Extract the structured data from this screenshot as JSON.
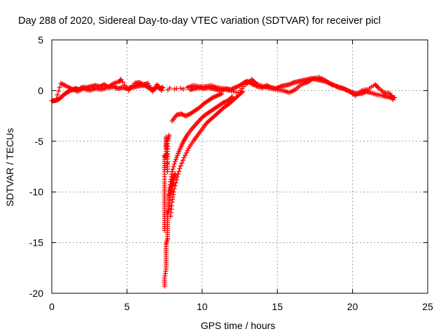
{
  "chart_data": {
    "type": "scatter",
    "title": "Day 288 of 2020, Sidereal Day-to-day VTEC variation (SDTVAR) for receiver picl",
    "xlabel": "GPS time / hours",
    "ylabel": "SDTVAR / TECUs",
    "xlim": [
      0,
      25
    ],
    "ylim": [
      -20,
      5
    ],
    "xticks": [
      0,
      5,
      10,
      15,
      20,
      25
    ],
    "yticks": [
      5,
      0,
      -5,
      -10,
      -15,
      -20
    ],
    "xtick_labels": [
      "0",
      "5",
      "10",
      "15",
      "20",
      "25"
    ],
    "ytick_labels": [
      "5",
      "0",
      "-5",
      "-10",
      "-15",
      "-20"
    ],
    "grid": true,
    "marker": "+",
    "color": "#ff0000",
    "series": [
      {
        "name": "main-track",
        "x": [
          0.0,
          0.2,
          0.4,
          0.6,
          0.8,
          1.0,
          1.2,
          1.4,
          1.6,
          1.8,
          2.0,
          2.3,
          2.6,
          2.9,
          3.2,
          3.5,
          3.8,
          4.1,
          4.4,
          4.7,
          5.0,
          5.3,
          5.6,
          5.9,
          6.2,
          6.5,
          6.8,
          7.0,
          7.2,
          7.4,
          9.2,
          9.5,
          9.8,
          10.1,
          10.4,
          10.7,
          11.0,
          11.3,
          11.6,
          11.9,
          12.2,
          12.5,
          12.8,
          13.0,
          13.2,
          13.4,
          13.7,
          14.0,
          14.3,
          14.6,
          14.9,
          15.2,
          15.5,
          15.8,
          16.1,
          16.4,
          16.7,
          17.0,
          17.3,
          17.6,
          17.9,
          18.2,
          18.5,
          18.8,
          19.1,
          19.4,
          19.7,
          20.0,
          20.3,
          20.6,
          20.9,
          21.2,
          21.6,
          22.0,
          22.3,
          22.6,
          22.8
        ],
        "y": [
          -1.0,
          -1.0,
          -0.9,
          -0.7,
          -0.4,
          -0.2,
          0.0,
          0.1,
          0.2,
          0.1,
          0.3,
          0.3,
          0.4,
          0.5,
          0.4,
          0.6,
          0.3,
          0.4,
          0.2,
          0.3,
          0.2,
          0.3,
          0.4,
          0.5,
          0.5,
          0.2,
          0.1,
          0.4,
          0.2,
          0.3,
          0.1,
          0.2,
          0.3,
          0.2,
          0.3,
          0.2,
          0.1,
          0.0,
          0.2,
          0.1,
          0.3,
          0.5,
          0.8,
          0.9,
          0.8,
          0.6,
          0.4,
          0.3,
          0.5,
          0.3,
          0.2,
          0.4,
          0.5,
          0.6,
          0.8,
          0.9,
          1.0,
          1.1,
          1.2,
          1.1,
          1.0,
          0.9,
          0.7,
          0.5,
          0.3,
          0.2,
          0.0,
          -0.2,
          -0.3,
          -0.3,
          -0.1,
          -0.2,
          -0.4,
          -0.5,
          -0.6,
          -0.7,
          -0.7
        ]
      },
      {
        "name": "main-track-secondary",
        "x": [
          0.3,
          0.6,
          0.9,
          1.3,
          1.7,
          2.1,
          2.5,
          2.9,
          3.3,
          3.7,
          4.1,
          4.5,
          4.6,
          5.1,
          5.5,
          5.8,
          6.1,
          6.4,
          6.7,
          7.0,
          7.3,
          9.0,
          9.4,
          9.8,
          10.2,
          10.6,
          11.0,
          11.4,
          11.8,
          12.4,
          12.9,
          13.3,
          13.6,
          14.1,
          14.5,
          15.0,
          15.4,
          15.8,
          16.2,
          16.6,
          17.0,
          17.4,
          17.8,
          18.2,
          18.6,
          19.0,
          19.4,
          19.8,
          20.2,
          20.6,
          21.0,
          21.5,
          21.7,
          22.1,
          22.5,
          22.7
        ],
        "y": [
          -0.8,
          0.7,
          0.5,
          0.2,
          -0.1,
          0.2,
          0.0,
          0.2,
          0.1,
          0.3,
          0.7,
          0.9,
          1.1,
          0.0,
          0.7,
          0.8,
          0.6,
          0.7,
          -0.1,
          0.6,
          0.0,
          0.3,
          0.5,
          0.4,
          0.4,
          0.5,
          0.3,
          0.2,
          0.0,
          -0.2,
          0.6,
          1.1,
          0.7,
          0.4,
          0.2,
          0.1,
          0.0,
          -0.2,
          0.1,
          0.6,
          0.8,
          1.2,
          1.3,
          1.0,
          0.6,
          0.4,
          0.2,
          -0.1,
          -0.5,
          0.0,
          0.1,
          0.6,
          0.3,
          -0.2,
          -0.3,
          -0.9
        ]
      },
      {
        "name": "dip-left-vertical",
        "x": [
          7.5,
          7.5,
          7.5,
          7.5,
          7.5,
          7.5,
          7.5,
          7.5,
          7.5,
          7.5,
          7.6,
          7.6,
          7.6,
          7.6,
          7.7,
          7.7,
          7.7,
          7.7,
          7.8
        ],
        "y": [
          -13.8,
          -13.0,
          -12.2,
          -11.4,
          -10.6,
          -9.8,
          -9.0,
          -8.0,
          -7.2,
          -6.4,
          -6.6,
          -5.8,
          -5.2,
          -4.6,
          -8.0,
          -7.0,
          -6.0,
          -5.0,
          -4.4
        ]
      },
      {
        "name": "dip-deep-spike",
        "x": [
          7.5,
          7.5,
          7.6,
          7.6,
          7.6,
          7.6,
          7.7,
          7.7,
          7.7,
          7.7,
          7.8,
          7.8,
          7.8,
          7.9,
          7.9,
          8.0,
          8.0,
          8.1,
          8.2
        ],
        "y": [
          -19.3,
          -18.5,
          -17.6,
          -16.8,
          -16.0,
          -15.2,
          -14.6,
          -13.8,
          -13.0,
          -12.2,
          -11.6,
          -11.0,
          -10.4,
          -10.0,
          -9.6,
          -9.3,
          -9.0,
          -8.6,
          -8.2
        ]
      },
      {
        "name": "recovery-upper",
        "x": [
          8.0,
          8.3,
          8.6,
          8.9,
          9.2,
          9.5,
          9.8,
          10.1,
          10.4,
          10.7,
          11.0,
          11.3
        ],
        "y": [
          -3.0,
          -2.4,
          -2.3,
          -2.5,
          -2.3,
          -2.0,
          -1.7,
          -1.3,
          -1.0,
          -0.7,
          -0.5,
          -0.3
        ]
      },
      {
        "name": "recovery-middle",
        "x": [
          7.8,
          7.9,
          8.0,
          8.2,
          8.4,
          8.6,
          8.8,
          9.0,
          9.3,
          9.6,
          9.9,
          10.2,
          10.5,
          10.8,
          11.1,
          11.4,
          11.7,
          12.0
        ],
        "y": [
          -10.2,
          -9.0,
          -8.0,
          -7.0,
          -6.2,
          -5.5,
          -4.9,
          -4.4,
          -3.8,
          -3.3,
          -2.8,
          -2.4,
          -2.1,
          -1.8,
          -1.5,
          -1.2,
          -1.0,
          -0.6
        ]
      },
      {
        "name": "recovery-lower",
        "x": [
          7.9,
          8.0,
          8.1,
          8.3,
          8.5,
          8.8,
          9.1,
          9.4,
          9.7,
          10.0,
          10.3,
          10.6,
          10.9,
          11.2,
          11.5,
          11.8,
          12.1,
          12.4,
          12.7
        ],
        "y": [
          -12.4,
          -11.0,
          -10.0,
          -8.8,
          -7.7,
          -6.6,
          -5.7,
          -5.0,
          -4.4,
          -3.8,
          -3.2,
          -2.8,
          -2.4,
          -2.0,
          -1.6,
          -1.3,
          -0.9,
          -0.5,
          -0.1
        ]
      }
    ]
  }
}
